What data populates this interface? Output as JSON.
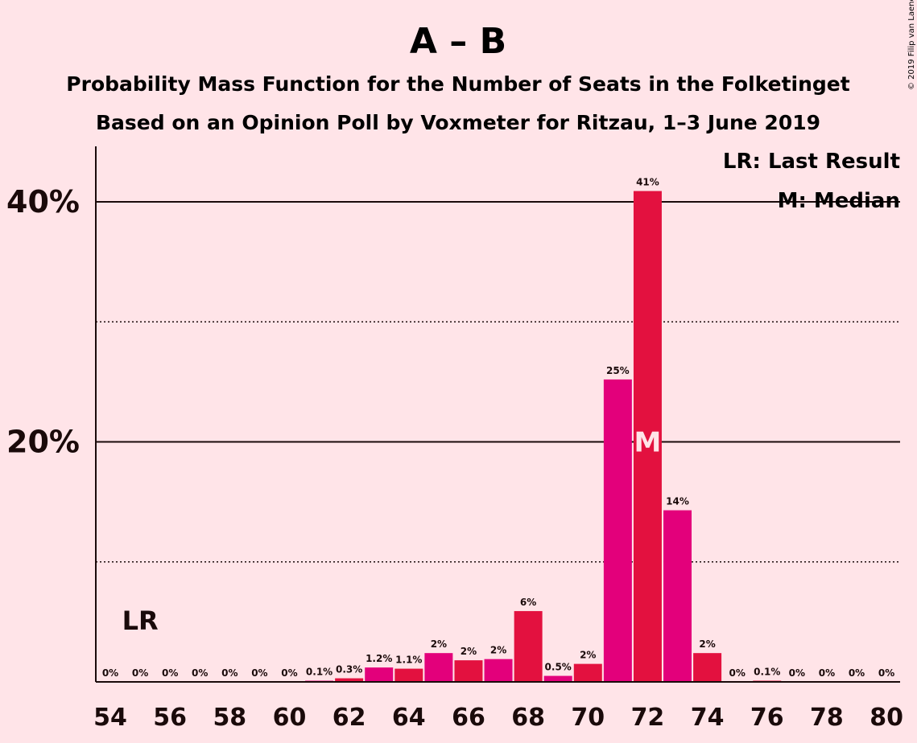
{
  "title": "A – B",
  "subtitle1": "Probability Mass Function for the Number of Seats in the Folketinget",
  "subtitle2": "Based on an Opinion Poll by Voxmeter for Ritzau, 1–3 June 2019",
  "copyright": "© 2019 Filip van Laenen",
  "legend": {
    "lr": "LR: Last Result",
    "median": "M: Median"
  },
  "markers": {
    "lr_label": "LR",
    "lr_seat": 55,
    "median_label": "M",
    "median_seat": 72
  },
  "colors": {
    "background": "#ffe4e8",
    "bar_a": "#e3007b",
    "bar_b": "#e3113f",
    "text": "#1a0a0a"
  },
  "chart_data": {
    "type": "bar",
    "xlabel": "",
    "ylabel": "",
    "ylim": [
      0,
      45
    ],
    "yticks": [
      {
        "value": 20,
        "label": "20%"
      },
      {
        "value": 40,
        "label": "40%"
      }
    ],
    "gridlines_dotted": [
      10,
      30
    ],
    "xticks": [
      54,
      56,
      58,
      60,
      62,
      64,
      66,
      68,
      70,
      72,
      74,
      76,
      78,
      80
    ],
    "legend_position": "top-right",
    "bars": [
      {
        "seat": 54,
        "value": 0,
        "label": "0%"
      },
      {
        "seat": 55,
        "value": 0,
        "label": "0%"
      },
      {
        "seat": 56,
        "value": 0,
        "label": "0%"
      },
      {
        "seat": 57,
        "value": 0,
        "label": "0%"
      },
      {
        "seat": 58,
        "value": 0,
        "label": "0%"
      },
      {
        "seat": 59,
        "value": 0,
        "label": "0%"
      },
      {
        "seat": 60,
        "value": 0,
        "label": "0%"
      },
      {
        "seat": 61,
        "value": 0.1,
        "label": "0.1%"
      },
      {
        "seat": 62,
        "value": 0.3,
        "label": "0.3%"
      },
      {
        "seat": 63,
        "value": 1.2,
        "label": "1.2%"
      },
      {
        "seat": 64,
        "value": 1.1,
        "label": "1.1%"
      },
      {
        "seat": 65,
        "value": 2.4,
        "label": "2%"
      },
      {
        "seat": 66,
        "value": 1.8,
        "label": "2%"
      },
      {
        "seat": 67,
        "value": 1.9,
        "label": "2%"
      },
      {
        "seat": 68,
        "value": 5.9,
        "label": "6%"
      },
      {
        "seat": 69,
        "value": 0.5,
        "label": "0.5%"
      },
      {
        "seat": 70,
        "value": 1.5,
        "label": "2%"
      },
      {
        "seat": 71,
        "value": 25.2,
        "label": "25%"
      },
      {
        "seat": 72,
        "value": 40.9,
        "label": "41%"
      },
      {
        "seat": 73,
        "value": 14.3,
        "label": "14%"
      },
      {
        "seat": 74,
        "value": 2.4,
        "label": "2%"
      },
      {
        "seat": 75,
        "value": 0,
        "label": "0%"
      },
      {
        "seat": 76,
        "value": 0.1,
        "label": "0.1%"
      },
      {
        "seat": 77,
        "value": 0,
        "label": "0%"
      },
      {
        "seat": 78,
        "value": 0,
        "label": "0%"
      },
      {
        "seat": 79,
        "value": 0,
        "label": "0%"
      },
      {
        "seat": 80,
        "value": 0,
        "label": "0%"
      }
    ]
  }
}
